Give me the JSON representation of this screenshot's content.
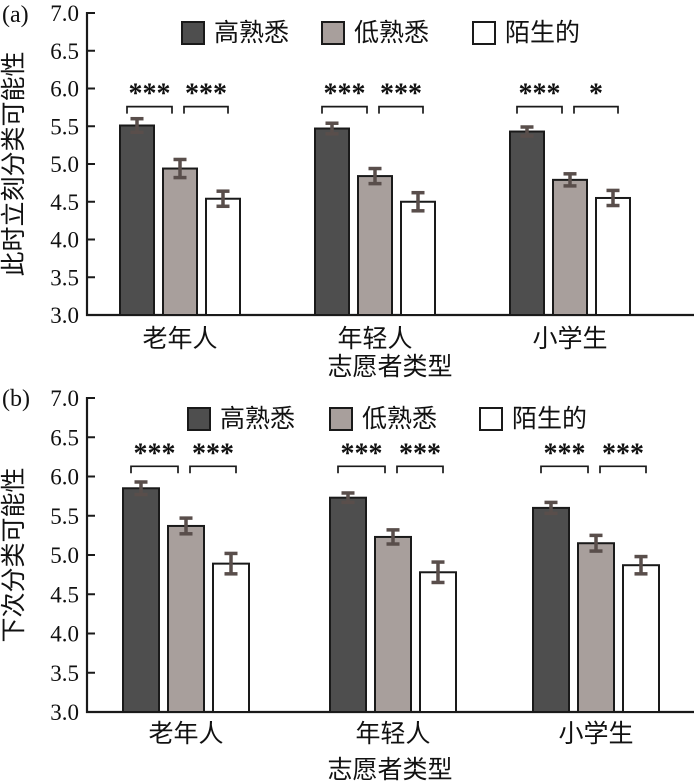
{
  "figure_title": "",
  "colors": {
    "axis": "#1a1a1a",
    "bar_border": "#1a1a1a",
    "error_bar": "#594e4b",
    "high_familiar": "#4e4e4e",
    "low_familiar": "#a89f9c",
    "stranger": "#ffffff"
  },
  "chart_data": [
    {
      "type": "bar",
      "panel": "(a)",
      "ylabel": "此时立刻分类可能性",
      "xlabel": "志愿者类型",
      "ylim": [
        3.0,
        7.0
      ],
      "yticks": [
        "3.0",
        "3.5",
        "4.0",
        "4.5",
        "5.0",
        "5.5",
        "6.0",
        "6.5",
        "7.0"
      ],
      "grid": false,
      "legend_position": "top-inside",
      "categories": [
        "老年人",
        "年轻人",
        "小学生"
      ],
      "series": [
        {
          "key": "high-familiar",
          "name": "高熟悉",
          "color": "#4e4e4e",
          "values": [
            5.51,
            5.47,
            5.43
          ],
          "errors": [
            0.09,
            0.07,
            0.06
          ]
        },
        {
          "key": "low-familiar",
          "name": "低熟悉",
          "color": "#a89f9c",
          "values": [
            4.94,
            4.84,
            4.79
          ],
          "errors": [
            0.12,
            0.1,
            0.08
          ]
        },
        {
          "key": "stranger",
          "name": "陌生的",
          "color": "#ffffff",
          "values": [
            4.54,
            4.5,
            4.55
          ],
          "errors": [
            0.1,
            0.12,
            0.1
          ]
        }
      ],
      "sig_bracket_y": 5.76,
      "significance": [
        {
          "category": "老年人",
          "pairs": [
            {
              "bars": [
                0,
                1
              ],
              "label": "***"
            },
            {
              "bars": [
                1,
                2
              ],
              "label": "***"
            }
          ]
        },
        {
          "category": "年轻人",
          "pairs": [
            {
              "bars": [
                0,
                1
              ],
              "label": "***"
            },
            {
              "bars": [
                1,
                2
              ],
              "label": "***"
            }
          ]
        },
        {
          "category": "小学生",
          "pairs": [
            {
              "bars": [
                0,
                1
              ],
              "label": "***"
            },
            {
              "bars": [
                1,
                2
              ],
              "label": "*"
            }
          ]
        }
      ]
    },
    {
      "type": "bar",
      "panel": "(b)",
      "ylabel": "下次分类可能性",
      "xlabel": "志愿者类型",
      "ylim": [
        3.0,
        7.0
      ],
      "yticks": [
        "3.0",
        "3.5",
        "4.0",
        "4.5",
        "5.0",
        "5.5",
        "6.0",
        "6.5",
        "7.0"
      ],
      "grid": false,
      "legend_position": "top-inside",
      "categories": [
        "老年人",
        "年轻人",
        "小学生"
      ],
      "series": [
        {
          "key": "high-familiar",
          "name": "高熟悉",
          "color": "#4e4e4e",
          "values": [
            5.85,
            5.73,
            5.6
          ],
          "errors": [
            0.08,
            0.06,
            0.07
          ]
        },
        {
          "key": "low-familiar",
          "name": "低熟悉",
          "color": "#a89f9c",
          "values": [
            5.37,
            5.23,
            5.15
          ],
          "errors": [
            0.1,
            0.09,
            0.1
          ]
        },
        {
          "key": "stranger",
          "name": "陌生的",
          "color": "#ffffff",
          "values": [
            4.89,
            4.78,
            4.87
          ],
          "errors": [
            0.13,
            0.13,
            0.11
          ]
        }
      ],
      "sig_bracket_y": 6.13,
      "significance": [
        {
          "category": "老年人",
          "pairs": [
            {
              "bars": [
                0,
                1
              ],
              "label": "***"
            },
            {
              "bars": [
                1,
                2
              ],
              "label": "***"
            }
          ]
        },
        {
          "category": "年轻人",
          "pairs": [
            {
              "bars": [
                0,
                1
              ],
              "label": "***"
            },
            {
              "bars": [
                1,
                2
              ],
              "label": "***"
            }
          ]
        },
        {
          "category": "小学生",
          "pairs": [
            {
              "bars": [
                0,
                1
              ],
              "label": "***"
            },
            {
              "bars": [
                1,
                2
              ],
              "label": "***"
            }
          ]
        }
      ]
    }
  ]
}
